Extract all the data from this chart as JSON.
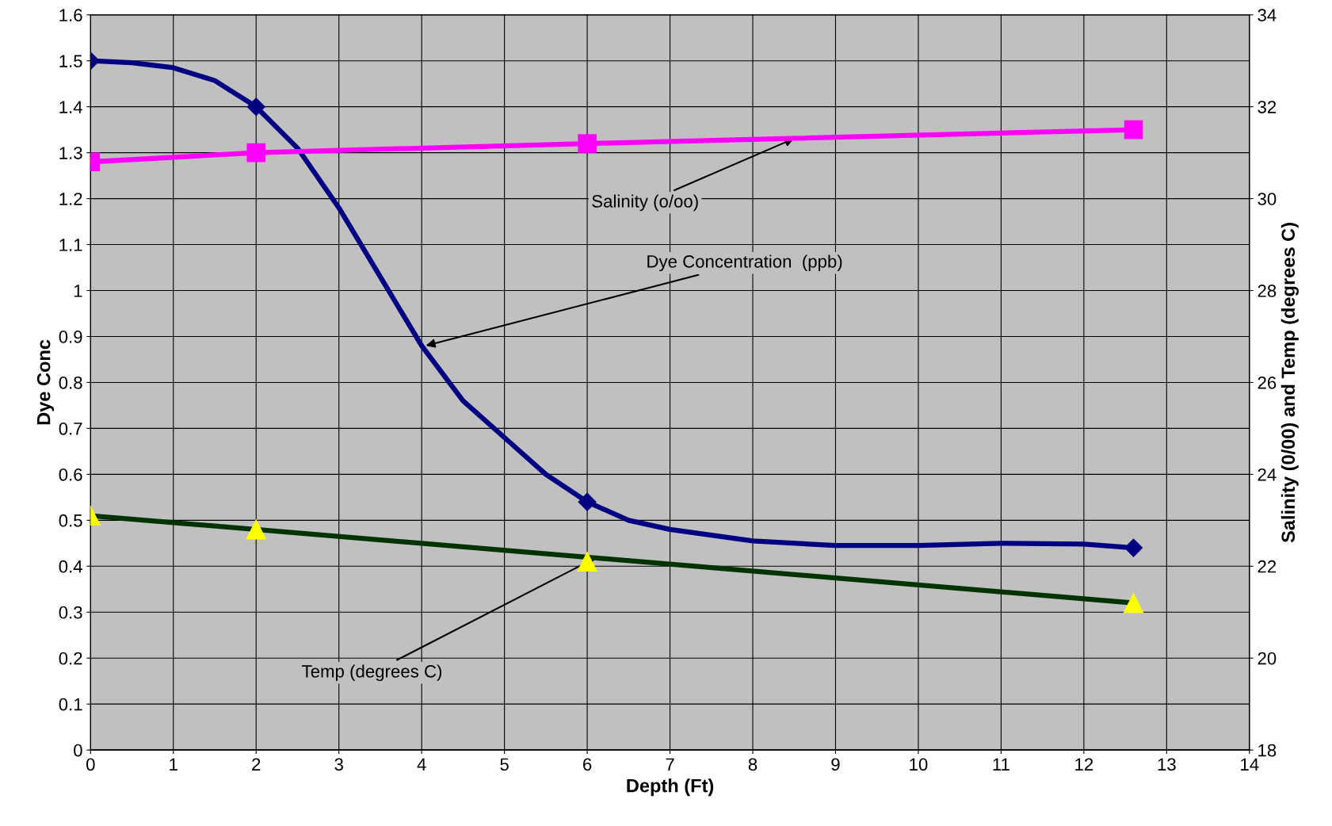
{
  "chart_data": {
    "type": "line",
    "xlabel": "Depth (Ft)",
    "ylabel": "Dye Conc",
    "y2label": "Salinity (0/00) and Temp (degrees C)",
    "xlim": [
      0,
      14
    ],
    "xticks": [
      0,
      1,
      2,
      3,
      4,
      5,
      6,
      7,
      8,
      9,
      10,
      11,
      12,
      13,
      14
    ],
    "ylim": [
      0,
      1.6
    ],
    "yticks": [
      0,
      0.1,
      0.2,
      0.3,
      0.4,
      0.5,
      0.6,
      0.7,
      0.8,
      0.9,
      1,
      1.1,
      1.2,
      1.3,
      1.4,
      1.5,
      1.6
    ],
    "y2lim": [
      18,
      34
    ],
    "y2ticks": [
      18,
      20,
      22,
      24,
      26,
      28,
      30,
      32,
      34
    ],
    "grid": true,
    "legend": false,
    "series": [
      {
        "color": "#000080",
        "marker": "none",
        "x": [
          0,
          0.5,
          1,
          1.5,
          2,
          2.5,
          3,
          3.5,
          4,
          4.5,
          5,
          5.5,
          6,
          6.5,
          7,
          8,
          9,
          10,
          11,
          12,
          12.6
        ],
        "values": [
          1.5,
          1.496,
          1.485,
          1.457,
          1.4,
          1.31,
          1.18,
          1.03,
          0.88,
          0.76,
          0.68,
          0.6,
          0.54,
          0.5,
          0.48,
          0.455,
          0.445,
          0.445,
          0.45,
          0.448,
          0.44
        ]
      },
      {
        "type": "scatter",
        "color": "#000080",
        "marker": "diamond",
        "x": [
          0,
          2,
          6,
          12.6
        ],
        "values": [
          1.5,
          1.4,
          0.54,
          0.44
        ]
      },
      {
        "axis": "y2",
        "color": "#ff00ff",
        "marker": "square",
        "x": [
          0,
          2,
          6,
          12.6
        ],
        "values": [
          30.8,
          31.0,
          31.2,
          31.5
        ]
      },
      {
        "type": "scatter",
        "axis": "y2",
        "color": "#ffff00",
        "marker": "triangle",
        "x": [
          0,
          2,
          6,
          12.6
        ],
        "values": [
          23.1,
          22.8,
          22.1,
          21.2
        ]
      },
      {
        "type": "line",
        "axis": "y2",
        "color": "#003300",
        "marker": "none",
        "x": [
          0,
          12.6
        ],
        "values": [
          23.1,
          21.2
        ]
      }
    ],
    "annotations": [
      {
        "text": "Salinity (o/oo)",
        "x": 8.5,
        "y": 1.331
      },
      {
        "text": "Dye Concentration  (ppb)",
        "x": 4.05,
        "y": 0.88
      },
      {
        "text": "Temp (degrees C)",
        "x": 6.1,
        "y": 0.418
      }
    ]
  }
}
